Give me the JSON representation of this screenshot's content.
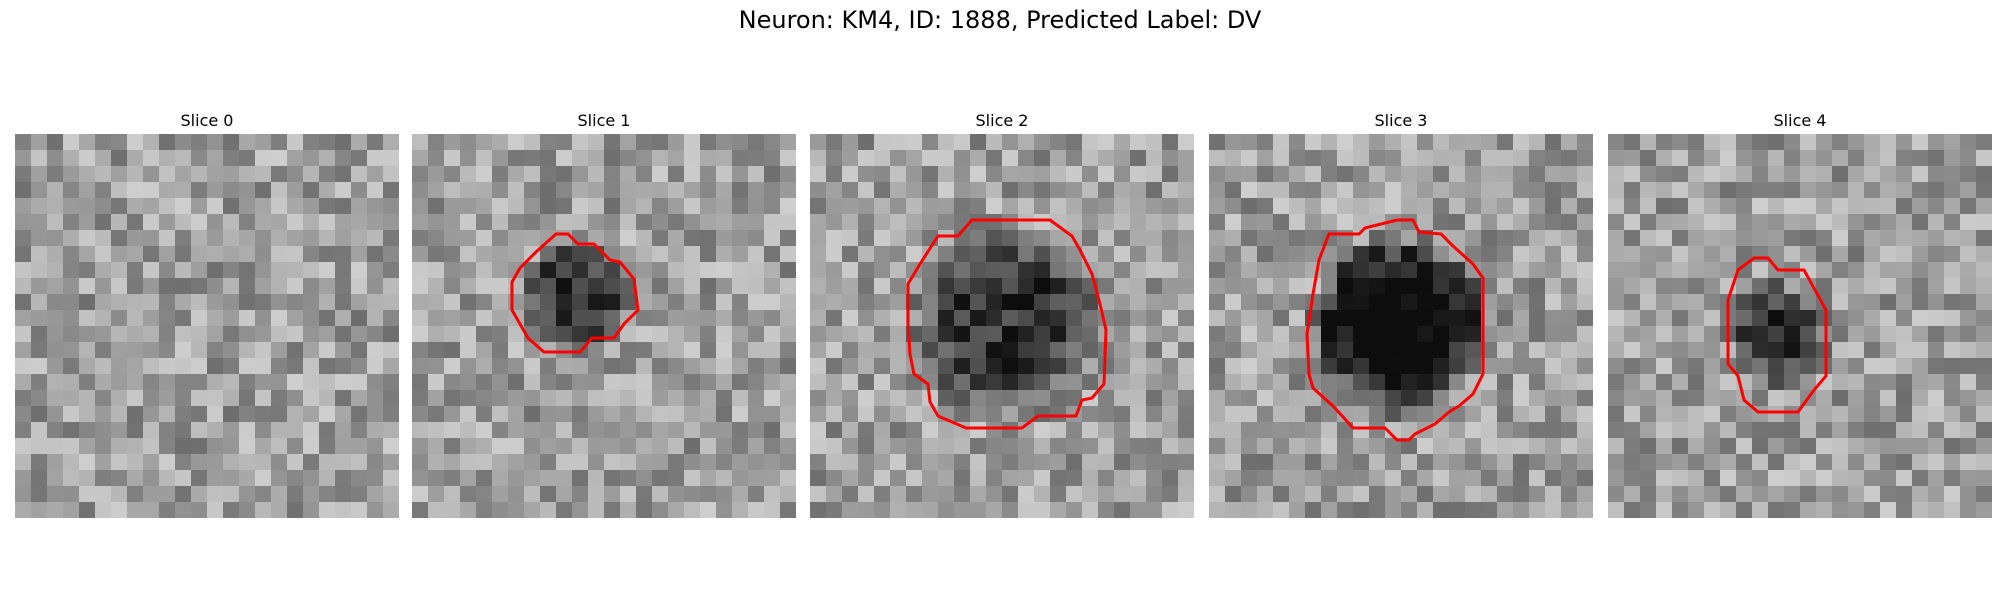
{
  "figure": {
    "suptitle": "Neuron: KM4, ID: 1888, Predicted Label: DV",
    "contour_color": "#ff0000",
    "panels": [
      {
        "title": "Slice 0",
        "has_contour": false,
        "dark_blob": false
      },
      {
        "title": "Slice 1",
        "has_contour": true,
        "dark_blob": true
      },
      {
        "title": "Slice 2",
        "has_contour": true,
        "dark_blob": true
      },
      {
        "title": "Slice 3",
        "has_contour": true,
        "dark_blob": true
      },
      {
        "title": "Slice 4",
        "has_contour": true,
        "dark_blob": true
      }
    ]
  }
}
